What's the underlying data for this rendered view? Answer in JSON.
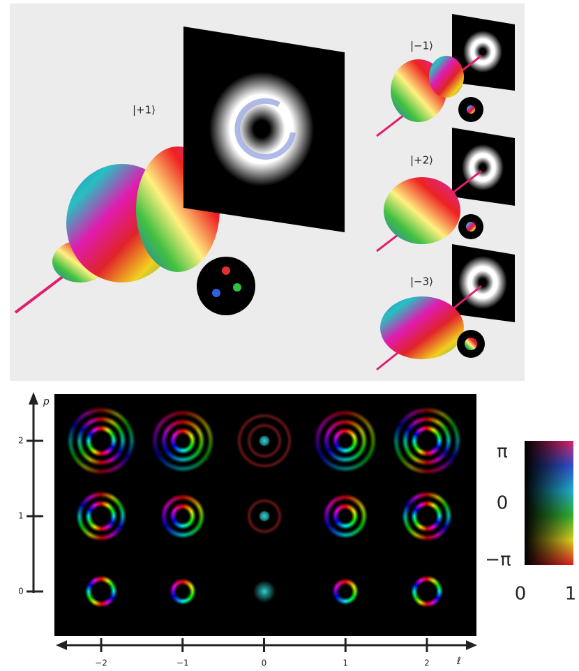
{
  "top_panel": {
    "state_labels": [
      "|+1⟩",
      "|−1⟩",
      "|+2⟩",
      "|−3⟩"
    ]
  },
  "mode_grid": {
    "y_axis_label": "p",
    "y_ticks": [
      0,
      1,
      2
    ],
    "x_axis_label": "ℓ",
    "x_ticks": [
      {
        "value": -2,
        "label": "−2"
      },
      {
        "value": -1,
        "label": "−1"
      },
      {
        "value": 0,
        "label": "0"
      },
      {
        "value": 1,
        "label": "1"
      },
      {
        "value": 2,
        "label": "2"
      }
    ]
  },
  "colorbar": {
    "top_label": "π",
    "middle_label": "0",
    "bottom_label": "−π",
    "left_label": "0",
    "right_label": "1"
  }
}
